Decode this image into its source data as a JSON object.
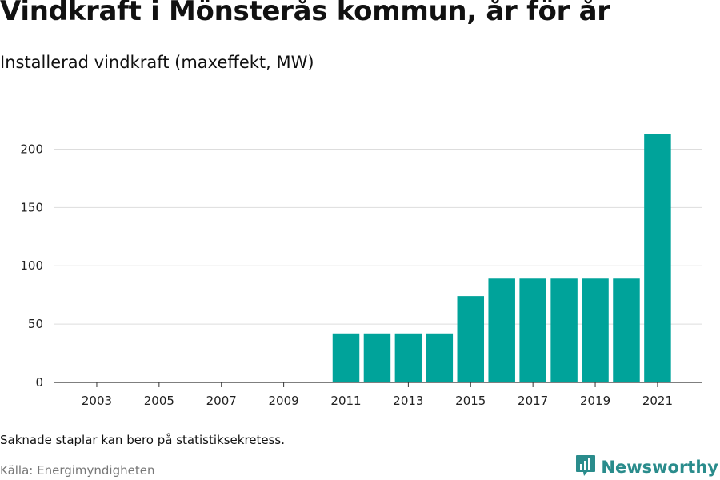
{
  "header": {
    "title": "Vindkraft i Mönsterås kommun, år för år",
    "subtitle": "Installerad vindkraft (maxeffekt, MW)"
  },
  "footer": {
    "note": "Saknade staplar kan bero på statistiksekretess.",
    "source": "Källa: Energimyndigheten",
    "brand": "Newsworthy",
    "brand_icon": "bar-chart-logo-icon"
  },
  "colors": {
    "bar": "#00a39a",
    "grid": "#dddddd",
    "axis": "#333333",
    "brand": "#2a8c8c"
  },
  "chart_data": {
    "type": "bar",
    "title": "Vindkraft i Mönsterås kommun, år för år",
    "subtitle": "Installerad vindkraft (maxeffekt, MW)",
    "xlabel": "",
    "ylabel": "",
    "categories": [
      "2003",
      "2004",
      "2005",
      "2006",
      "2007",
      "2008",
      "2009",
      "2010",
      "2011",
      "2012",
      "2013",
      "2014",
      "2015",
      "2016",
      "2017",
      "2018",
      "2019",
      "2020",
      "2021"
    ],
    "values": [
      0,
      0,
      0,
      0,
      0,
      0,
      0,
      0,
      42,
      42,
      42,
      42,
      74,
      89,
      89,
      89,
      89,
      89,
      213
    ],
    "x_tick_labels": [
      "2003",
      "2005",
      "2007",
      "2009",
      "2011",
      "2013",
      "2015",
      "2017",
      "2019",
      "2021"
    ],
    "y_ticks": [
      0,
      50,
      100,
      150,
      200
    ],
    "ylim": [
      0,
      225
    ],
    "grid": true
  }
}
